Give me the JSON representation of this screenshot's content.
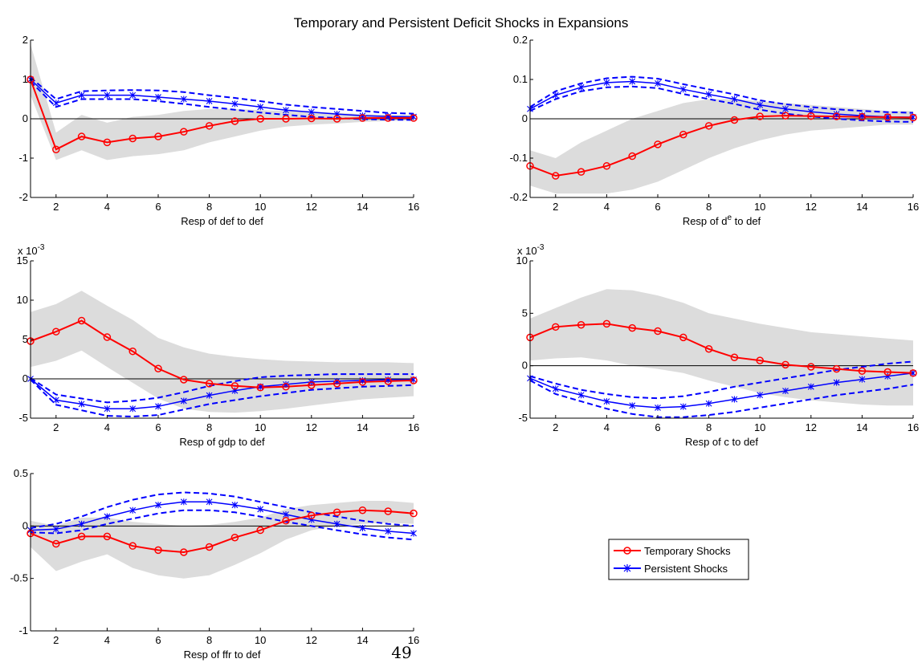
{
  "figure": {
    "title": "Temporary and Persistent Deficit Shocks in Expansions",
    "page_number": "49",
    "legend": [
      {
        "label": "Temporary Shocks",
        "color": "#ff0000",
        "marker": "circle"
      },
      {
        "label": "Persistent Shocks",
        "color": "#0000ff",
        "marker": "star"
      }
    ]
  },
  "chart_data": [
    {
      "type": "line",
      "xlabel": "Resp of def to def",
      "xlim": [
        1,
        16
      ],
      "ylim": [
        -2,
        2
      ],
      "xticks": [
        2,
        4,
        6,
        8,
        10,
        12,
        14,
        16
      ],
      "yticks": [
        -2,
        -1,
        0,
        1,
        2
      ],
      "ytick_labels": [
        "-2",
        "-1",
        "0",
        "1",
        "2"
      ],
      "exponent": "",
      "x": [
        1,
        2,
        3,
        4,
        5,
        6,
        7,
        8,
        9,
        10,
        11,
        12,
        13,
        14,
        15,
        16
      ],
      "temporary": [
        1.0,
        -0.78,
        -0.45,
        -0.6,
        -0.5,
        -0.45,
        -0.33,
        -0.18,
        -0.06,
        0.0,
        0.0,
        0.01,
        0.0,
        0.02,
        0.02,
        0.02
      ],
      "temporary_band_upper": [
        1.9,
        -0.35,
        0.1,
        -0.1,
        0.05,
        0.1,
        0.2,
        0.25,
        0.25,
        0.22,
        0.2,
        0.18,
        0.15,
        0.12,
        0.1,
        0.1
      ],
      "temporary_band_lower": [
        0.6,
        -1.05,
        -0.8,
        -1.05,
        -0.95,
        -0.9,
        -0.8,
        -0.6,
        -0.45,
        -0.3,
        -0.2,
        -0.15,
        -0.12,
        -0.08,
        -0.06,
        -0.05
      ],
      "persistent": [
        1.0,
        0.4,
        0.6,
        0.6,
        0.6,
        0.55,
        0.5,
        0.45,
        0.38,
        0.3,
        0.22,
        0.17,
        0.12,
        0.08,
        0.06,
        0.05
      ],
      "persistent_upper": [
        1.05,
        0.5,
        0.7,
        0.72,
        0.73,
        0.72,
        0.68,
        0.6,
        0.53,
        0.45,
        0.36,
        0.3,
        0.25,
        0.2,
        0.15,
        0.13
      ],
      "persistent_lower": [
        0.95,
        0.3,
        0.5,
        0.5,
        0.5,
        0.45,
        0.38,
        0.3,
        0.23,
        0.16,
        0.1,
        0.05,
        0.02,
        -0.01,
        -0.02,
        -0.03
      ]
    },
    {
      "type": "line",
      "xlabel": "Resp of d",
      "xlabel_sup": "e",
      "xlabel_suffix": " to def",
      "xlim": [
        1,
        16
      ],
      "ylim": [
        -0.2,
        0.2
      ],
      "xticks": [
        2,
        4,
        6,
        8,
        10,
        12,
        14,
        16
      ],
      "yticks": [
        -0.2,
        -0.1,
        0,
        0.1,
        0.2
      ],
      "ytick_labels": [
        "-0.2",
        "-0.1",
        "0",
        "0.1",
        "0.2"
      ],
      "exponent": "",
      "x": [
        1,
        2,
        3,
        4,
        5,
        6,
        7,
        8,
        9,
        10,
        11,
        12,
        13,
        14,
        15,
        16
      ],
      "temporary": [
        -0.12,
        -0.145,
        -0.135,
        -0.12,
        -0.095,
        -0.065,
        -0.04,
        -0.018,
        -0.003,
        0.006,
        0.008,
        0.007,
        0.006,
        0.005,
        0.004,
        0.003
      ],
      "temporary_band_upper": [
        -0.08,
        -0.1,
        -0.06,
        -0.03,
        0.0,
        0.02,
        0.04,
        0.05,
        0.05,
        0.045,
        0.04,
        0.035,
        0.03,
        0.025,
        0.02,
        0.02
      ],
      "temporary_band_lower": [
        -0.17,
        -0.19,
        -0.19,
        -0.19,
        -0.18,
        -0.16,
        -0.13,
        -0.1,
        -0.075,
        -0.055,
        -0.04,
        -0.03,
        -0.025,
        -0.02,
        -0.015,
        -0.015
      ],
      "persistent": [
        0.025,
        0.06,
        0.08,
        0.092,
        0.095,
        0.09,
        0.075,
        0.062,
        0.05,
        0.035,
        0.025,
        0.018,
        0.012,
        0.008,
        0.005,
        0.004
      ],
      "persistent_upper": [
        0.03,
        0.07,
        0.09,
        0.103,
        0.107,
        0.102,
        0.088,
        0.075,
        0.062,
        0.047,
        0.037,
        0.03,
        0.024,
        0.02,
        0.017,
        0.015
      ],
      "persistent_lower": [
        0.02,
        0.05,
        0.07,
        0.08,
        0.082,
        0.078,
        0.063,
        0.05,
        0.038,
        0.023,
        0.013,
        0.006,
        0.0,
        -0.004,
        -0.007,
        -0.008
      ]
    },
    {
      "type": "line",
      "xlabel": "Resp of gdp to def",
      "xlim": [
        1,
        16
      ],
      "ylim": [
        -5,
        15
      ],
      "xticks": [
        2,
        4,
        6,
        8,
        10,
        12,
        14,
        16
      ],
      "yticks": [
        -5,
        0,
        5,
        10,
        15
      ],
      "ytick_labels": [
        "-5",
        "0",
        "5",
        "10",
        "15"
      ],
      "exponent": "x 10",
      "exponent_power": "-3",
      "x": [
        1,
        2,
        3,
        4,
        5,
        6,
        7,
        8,
        9,
        10,
        11,
        12,
        13,
        14,
        15,
        16
      ],
      "temporary": [
        4.8,
        6.0,
        7.4,
        5.3,
        3.5,
        1.3,
        -0.1,
        -0.6,
        -0.9,
        -1.1,
        -1.0,
        -0.8,
        -0.6,
        -0.4,
        -0.3,
        -0.2
      ],
      "temporary_band_upper": [
        8.5,
        9.5,
        11.2,
        9.3,
        7.5,
        5.2,
        4.0,
        3.2,
        2.8,
        2.5,
        2.3,
        2.2,
        2.1,
        2.1,
        2.1,
        2.0
      ],
      "temporary_band_lower": [
        1.5,
        2.3,
        3.6,
        1.5,
        -0.5,
        -2.5,
        -3.8,
        -4.2,
        -4.3,
        -4.1,
        -3.8,
        -3.4,
        -3.0,
        -2.6,
        -2.4,
        -2.2
      ],
      "persistent": [
        0,
        -2.7,
        -3.2,
        -3.8,
        -3.8,
        -3.5,
        -2.8,
        -2.1,
        -1.5,
        -1.0,
        -0.7,
        -0.4,
        -0.3,
        -0.2,
        -0.1,
        -0.1
      ],
      "persistent_upper": [
        0.1,
        -2.0,
        -2.5,
        -3.0,
        -2.8,
        -2.4,
        -1.7,
        -0.9,
        -0.3,
        0.2,
        0.4,
        0.5,
        0.6,
        0.6,
        0.6,
        0.6
      ],
      "persistent_lower": [
        -0.1,
        -3.3,
        -4.0,
        -4.7,
        -4.8,
        -4.6,
        -3.9,
        -3.2,
        -2.7,
        -2.2,
        -1.8,
        -1.4,
        -1.2,
        -1.0,
        -0.9,
        -0.8
      ]
    },
    {
      "type": "line",
      "xlabel": "Resp of c to def",
      "xlim": [
        1,
        16
      ],
      "ylim": [
        -5,
        10
      ],
      "xticks": [
        2,
        4,
        6,
        8,
        10,
        12,
        14,
        16
      ],
      "yticks": [
        -5,
        0,
        5,
        10
      ],
      "ytick_labels": [
        "-5",
        "0",
        "5",
        "10"
      ],
      "exponent": "x 10",
      "exponent_power": "-3",
      "x": [
        1,
        2,
        3,
        4,
        5,
        6,
        7,
        8,
        9,
        10,
        11,
        12,
        13,
        14,
        15,
        16
      ],
      "temporary": [
        2.7,
        3.7,
        3.9,
        4.0,
        3.6,
        3.3,
        2.7,
        1.6,
        0.8,
        0.5,
        0.1,
        -0.1,
        -0.3,
        -0.5,
        -0.6,
        -0.7
      ],
      "temporary_band_upper": [
        4.5,
        5.5,
        6.5,
        7.3,
        7.2,
        6.7,
        6.0,
        5.0,
        4.5,
        4.0,
        3.6,
        3.2,
        3.0,
        2.8,
        2.6,
        2.4
      ],
      "temporary_band_lower": [
        0.5,
        0.7,
        0.8,
        0.5,
        0.0,
        -0.3,
        -0.7,
        -1.4,
        -2.0,
        -2.6,
        -3.0,
        -3.3,
        -3.5,
        -3.7,
        -3.8,
        -3.8
      ],
      "persistent": [
        -1.2,
        -2.2,
        -2.8,
        -3.4,
        -3.8,
        -4.0,
        -3.9,
        -3.6,
        -3.2,
        -2.8,
        -2.4,
        -2.0,
        -1.6,
        -1.3,
        -1.0,
        -0.7
      ],
      "persistent_upper": [
        -1.0,
        -1.7,
        -2.3,
        -2.7,
        -3.0,
        -3.1,
        -2.9,
        -2.5,
        -2.0,
        -1.6,
        -1.2,
        -0.8,
        -0.4,
        -0.1,
        0.2,
        0.4
      ],
      "persistent_lower": [
        -1.4,
        -2.7,
        -3.4,
        -4.1,
        -4.6,
        -4.9,
        -4.9,
        -4.7,
        -4.4,
        -4.0,
        -3.6,
        -3.2,
        -2.8,
        -2.5,
        -2.2,
        -1.8
      ]
    },
    {
      "type": "line",
      "xlabel": "Resp of ffr to def",
      "xlim": [
        1,
        16
      ],
      "ylim": [
        -1,
        0.5
      ],
      "xticks": [
        2,
        4,
        6,
        8,
        10,
        12,
        14,
        16
      ],
      "yticks": [
        -1,
        -0.5,
        0,
        0.5
      ],
      "ytick_labels": [
        "-1",
        "-0.5",
        "0",
        "0.5"
      ],
      "exponent": "",
      "x": [
        1,
        2,
        3,
        4,
        5,
        6,
        7,
        8,
        9,
        10,
        11,
        12,
        13,
        14,
        15,
        16
      ],
      "temporary": [
        -0.07,
        -0.17,
        -0.1,
        -0.1,
        -0.19,
        -0.23,
        -0.25,
        -0.2,
        -0.11,
        -0.04,
        0.05,
        0.1,
        0.13,
        0.15,
        0.14,
        0.12
      ],
      "temporary_band_upper": [
        0.05,
        0.0,
        0.08,
        0.08,
        0.04,
        0.02,
        0.0,
        0.01,
        0.04,
        0.08,
        0.16,
        0.2,
        0.22,
        0.24,
        0.24,
        0.22
      ],
      "temporary_band_lower": [
        -0.2,
        -0.43,
        -0.34,
        -0.27,
        -0.4,
        -0.47,
        -0.5,
        -0.47,
        -0.37,
        -0.26,
        -0.13,
        -0.04,
        0.0,
        0.02,
        0.03,
        0.02
      ],
      "persistent": [
        -0.04,
        -0.03,
        0.02,
        0.09,
        0.15,
        0.2,
        0.23,
        0.23,
        0.2,
        0.16,
        0.11,
        0.06,
        0.02,
        -0.02,
        -0.05,
        -0.07
      ],
      "persistent_upper": [
        -0.02,
        0.02,
        0.09,
        0.18,
        0.25,
        0.3,
        0.32,
        0.31,
        0.28,
        0.23,
        0.18,
        0.13,
        0.09,
        0.05,
        0.02,
        0.0
      ],
      "persistent_lower": [
        -0.06,
        -0.07,
        -0.04,
        0.02,
        0.07,
        0.12,
        0.15,
        0.15,
        0.13,
        0.09,
        0.04,
        0.0,
        -0.04,
        -0.08,
        -0.11,
        -0.13
      ]
    }
  ]
}
